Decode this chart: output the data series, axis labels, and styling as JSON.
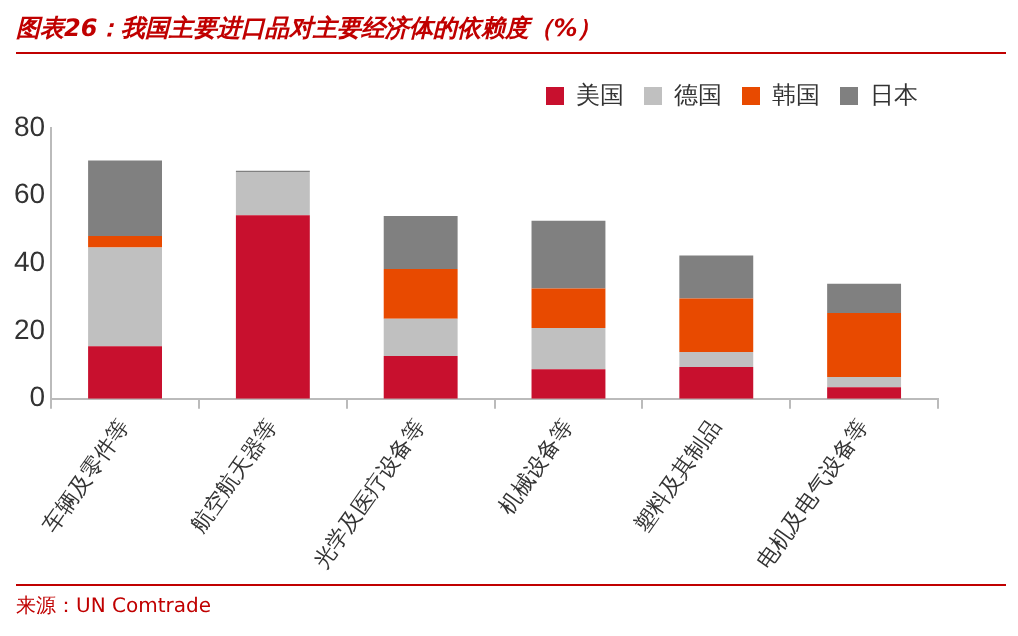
{
  "chart_data": {
    "type": "bar",
    "title": "图表26：我国主要进口品对主要经济体的依赖度（%）",
    "stacked": true,
    "categories": [
      "车辆及零件等",
      "航空航天器等",
      "光学及医疗设备等",
      "机械设备等",
      "塑料及其制品",
      "电机及电气设备等"
    ],
    "series": [
      {
        "name": "美国",
        "color": "#c8102e",
        "values": [
          15.5,
          54.2,
          12.6,
          8.7,
          9.4,
          3.4
        ]
      },
      {
        "name": "德国",
        "color": "#c0c0c0",
        "values": [
          29.2,
          12.8,
          11,
          12.2,
          4.4,
          3
        ]
      },
      {
        "name": "韩国",
        "color": "#e84a00",
        "values": [
          3.4,
          0,
          14.7,
          11.7,
          15.8,
          18.9
        ]
      },
      {
        "name": "日本",
        "color": "#808080",
        "values": [
          22.3,
          0.4,
          15.7,
          20,
          12.7,
          8.7
        ]
      }
    ],
    "ylim": [
      0,
      80
    ],
    "yticks": [
      0,
      20,
      40,
      60,
      80
    ],
    "grid": false,
    "legend": "top right",
    "annotations": [
      "来源：UN Comtrade"
    ]
  }
}
